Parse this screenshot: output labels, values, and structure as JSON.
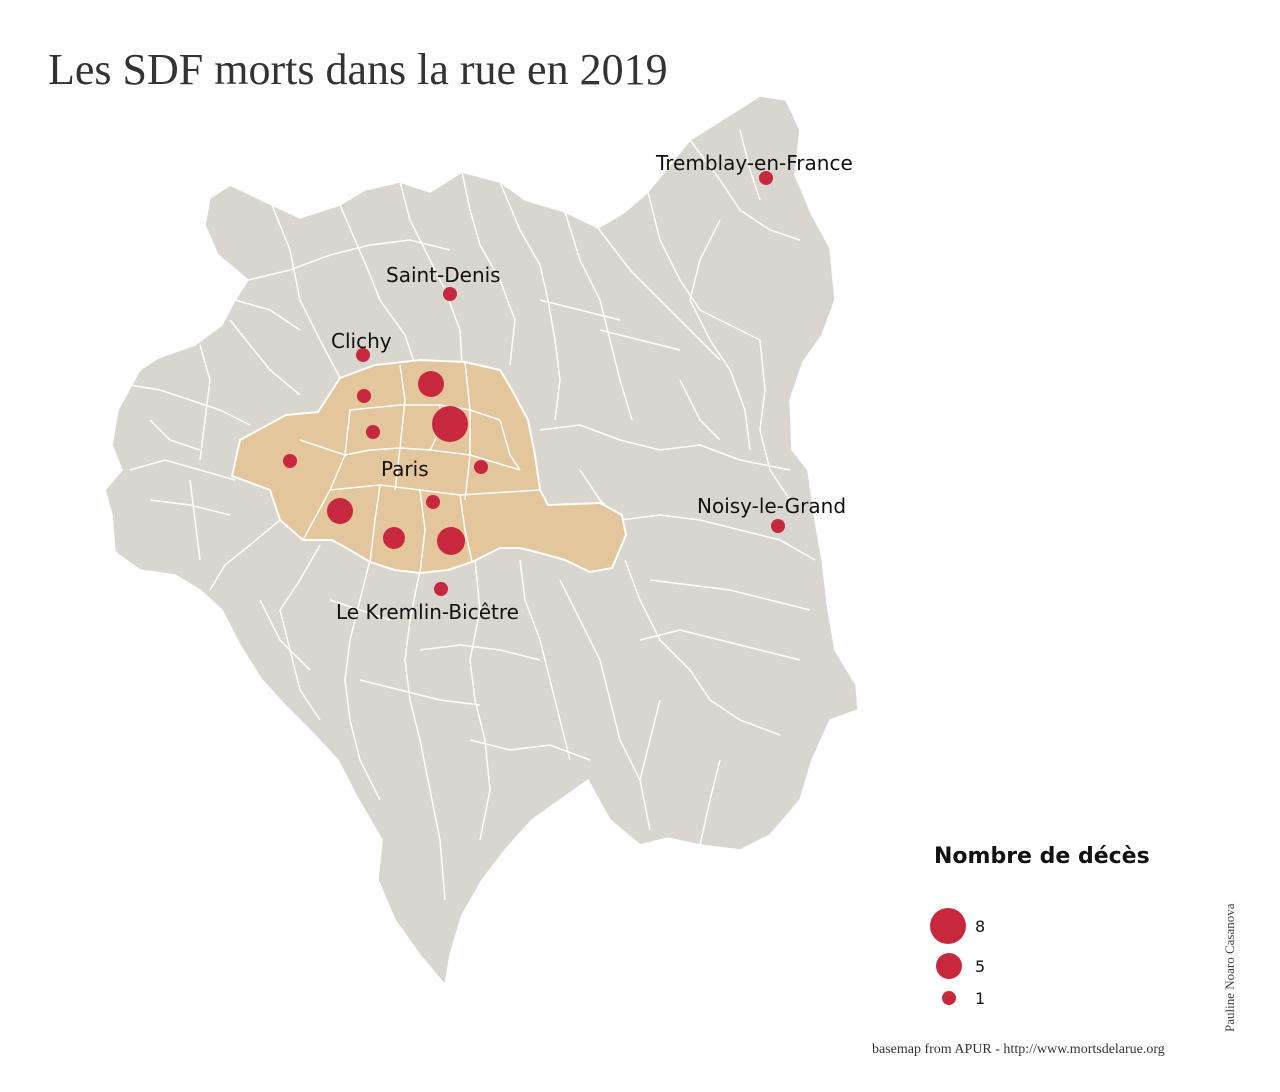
{
  "title": "Les SDF morts dans la rue en 2019",
  "colors": {
    "petite_couronne": "#d9d6cf",
    "paris": "#e4c69c",
    "boundary": "#ffffff",
    "marker": "#c8283d"
  },
  "places": {
    "tremblay": "Tremblay-en-France",
    "saint_denis": "Saint-Denis",
    "clichy": "Clichy",
    "paris": "Paris",
    "noisy": "Noisy-le-Grand",
    "kremlin": "Le Kremlin-Bicêtre"
  },
  "legend": {
    "title": "Nombre de décès",
    "values": [
      "8",
      "5",
      "1"
    ]
  },
  "author": "Pauline Noaro Casanova",
  "source": "basemap from APUR - http://www.mortsdelarue.org"
}
